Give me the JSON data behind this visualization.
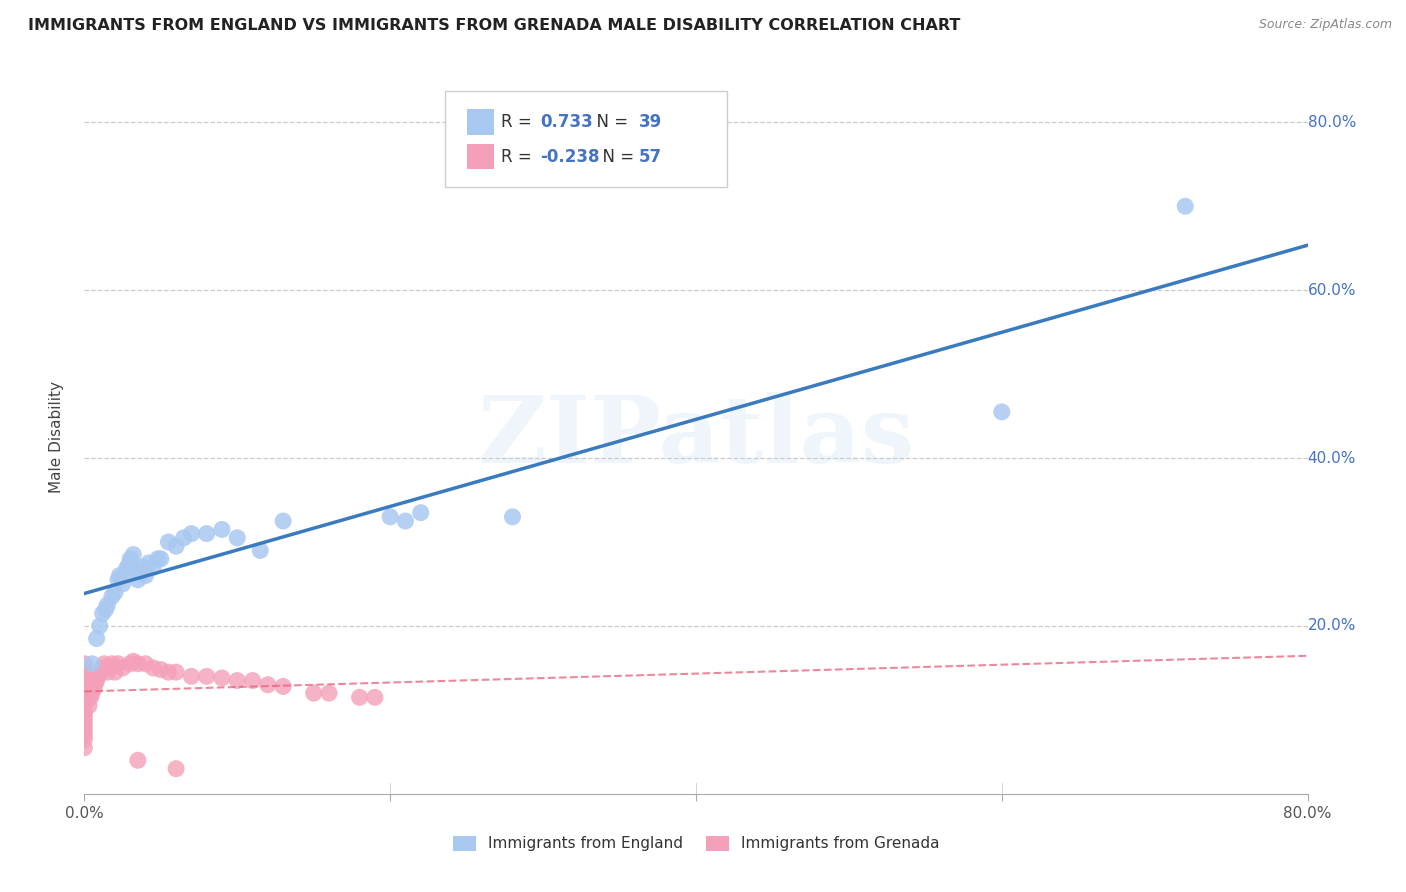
{
  "title": "IMMIGRANTS FROM ENGLAND VS IMMIGRANTS FROM GRENADA MALE DISABILITY CORRELATION CHART",
  "source": "Source: ZipAtlas.com",
  "ylabel": "Male Disability",
  "x_min": 0.0,
  "x_max": 0.8,
  "y_min": 0.0,
  "y_max": 0.85,
  "x_ticks": [
    0.0,
    0.2,
    0.4,
    0.6,
    0.8
  ],
  "x_tick_labels": [
    "0.0%",
    "",
    "",
    "",
    "80.0%"
  ],
  "y_ticks": [
    0.0,
    0.2,
    0.4,
    0.6,
    0.8
  ],
  "y_tick_labels_right": [
    "",
    "20.0%",
    "40.0%",
    "60.0%",
    "80.0%"
  ],
  "england_R": 0.733,
  "england_N": 39,
  "grenada_R": -0.238,
  "grenada_N": 57,
  "england_color": "#a8c8f0",
  "grenada_color": "#f4a0b8",
  "england_line_color": "#3a7abf",
  "grenada_line_color": "#e8607a",
  "watermark_text": "ZIPatlas",
  "legend_label_england": "Immigrants from England",
  "legend_label_grenada": "Immigrants from Grenada",
  "england_x": [
    0.005,
    0.008,
    0.01,
    0.012,
    0.014,
    0.015,
    0.018,
    0.02,
    0.022,
    0.023,
    0.025,
    0.027,
    0.028,
    0.03,
    0.03,
    0.032,
    0.035,
    0.036,
    0.038,
    0.04,
    0.042,
    0.045,
    0.048,
    0.05,
    0.055,
    0.06,
    0.065,
    0.07,
    0.08,
    0.09,
    0.1,
    0.115,
    0.13,
    0.2,
    0.21,
    0.22,
    0.28,
    0.6,
    0.72
  ],
  "england_y": [
    0.155,
    0.185,
    0.2,
    0.215,
    0.22,
    0.225,
    0.235,
    0.24,
    0.255,
    0.26,
    0.25,
    0.265,
    0.27,
    0.275,
    0.28,
    0.285,
    0.255,
    0.265,
    0.27,
    0.26,
    0.275,
    0.27,
    0.28,
    0.28,
    0.3,
    0.295,
    0.305,
    0.31,
    0.31,
    0.315,
    0.305,
    0.29,
    0.325,
    0.33,
    0.325,
    0.335,
    0.33,
    0.455,
    0.7
  ],
  "grenada_x": [
    0.0,
    0.0,
    0.0,
    0.0,
    0.0,
    0.0,
    0.0,
    0.0,
    0.0,
    0.0,
    0.0,
    0.0,
    0.0,
    0.0,
    0.0,
    0.0,
    0.0,
    0.0,
    0.0,
    0.0,
    0.003,
    0.004,
    0.005,
    0.006,
    0.007,
    0.008,
    0.009,
    0.01,
    0.012,
    0.013,
    0.015,
    0.016,
    0.018,
    0.02,
    0.022,
    0.025,
    0.03,
    0.032,
    0.035,
    0.04,
    0.045,
    0.05,
    0.055,
    0.06,
    0.07,
    0.08,
    0.09,
    0.1,
    0.11,
    0.12,
    0.13,
    0.15,
    0.16,
    0.18,
    0.19,
    0.035,
    0.06
  ],
  "grenada_y": [
    0.055,
    0.065,
    0.07,
    0.075,
    0.08,
    0.085,
    0.09,
    0.095,
    0.1,
    0.105,
    0.11,
    0.115,
    0.12,
    0.125,
    0.13,
    0.135,
    0.14,
    0.145,
    0.15,
    0.155,
    0.105,
    0.115,
    0.12,
    0.125,
    0.13,
    0.135,
    0.14,
    0.145,
    0.15,
    0.155,
    0.145,
    0.15,
    0.155,
    0.145,
    0.155,
    0.15,
    0.155,
    0.158,
    0.155,
    0.155,
    0.15,
    0.148,
    0.145,
    0.145,
    0.14,
    0.14,
    0.138,
    0.135,
    0.135,
    0.13,
    0.128,
    0.12,
    0.12,
    0.115,
    0.115,
    0.04,
    0.03
  ]
}
